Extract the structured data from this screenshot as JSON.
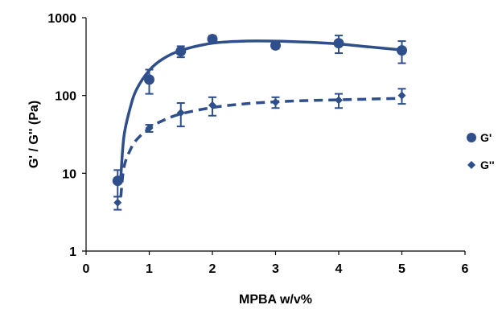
{
  "chart_data": {
    "type": "scatter",
    "xlabel": "MPBA w/v%",
    "ylabel": "G' / G'' (Pa)",
    "xlim": [
      0,
      6
    ],
    "ylim": [
      1,
      1000
    ],
    "yscale": "log",
    "xticks": [
      "0",
      "1",
      "2",
      "3",
      "4",
      "5",
      "6"
    ],
    "yticks": [
      "1",
      "10",
      "100",
      "1000"
    ],
    "grid": false,
    "legend_position": "right",
    "series": [
      {
        "name": "G'",
        "marker": "circle",
        "line_style": "solid",
        "color": "#2E4F8B",
        "x": [
          0.5,
          1,
          1.5,
          2,
          3,
          4,
          5
        ],
        "y": [
          8,
          160,
          370,
          530,
          440,
          470,
          380
        ],
        "error": [
          3,
          55,
          60,
          55,
          40,
          120,
          120
        ]
      },
      {
        "name": "G''",
        "marker": "diamond",
        "line_style": "dashed",
        "color": "#2E4F8B",
        "x": [
          0.5,
          1,
          1.5,
          2,
          3,
          4,
          5
        ],
        "y": [
          4.2,
          38,
          60,
          75,
          82,
          87,
          100
        ],
        "error": [
          0.8,
          4,
          20,
          20,
          13,
          18,
          22
        ]
      }
    ],
    "fit_curves": [
      {
        "series": "G'",
        "line_style": "solid",
        "x": [
          0.55,
          0.6,
          0.7,
          0.8,
          1.0,
          1.2,
          1.5,
          2.0,
          2.5,
          3.0,
          3.5,
          4.0,
          4.5,
          5.0
        ],
        "y": [
          9,
          30,
          70,
          120,
          210,
          290,
          380,
          470,
          500,
          500,
          485,
          460,
          420,
          385
        ]
      },
      {
        "series": "G''",
        "line_style": "dashed",
        "x": [
          0.55,
          0.6,
          0.7,
          0.8,
          1.0,
          1.2,
          1.5,
          2.0,
          2.5,
          3.0,
          3.5,
          4.0,
          4.5,
          5.0
        ],
        "y": [
          5,
          12,
          20,
          27,
          38,
          47,
          58,
          70,
          78,
          83,
          86,
          88,
          90,
          92
        ]
      }
    ]
  }
}
